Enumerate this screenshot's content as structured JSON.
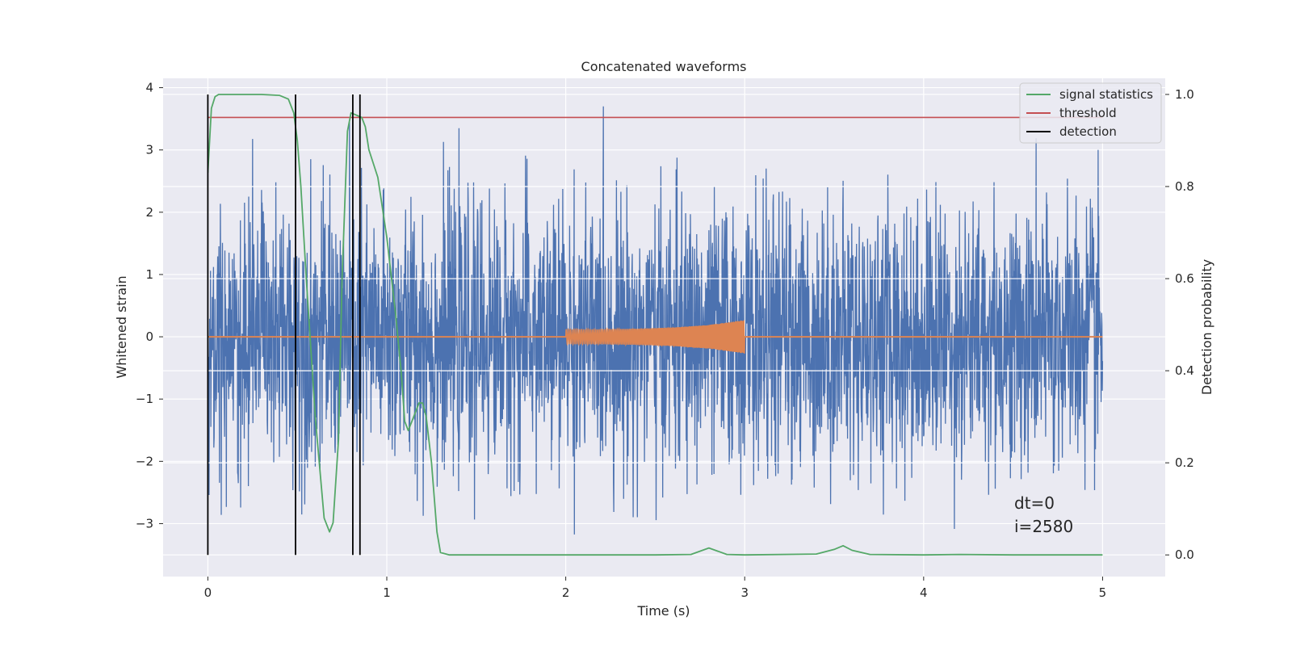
{
  "chart_data": {
    "type": "line",
    "title": "Concatenated waveforms",
    "xlabel": "Time (s)",
    "ylabel": "Whitened strain",
    "y2label": "Detection probability",
    "xlim": [
      -0.25,
      5.35
    ],
    "ylim": [
      -3.85,
      4.15
    ],
    "y2lim": [
      -0.047,
      1.035
    ],
    "xticks": [
      0,
      1,
      2,
      3,
      4,
      5
    ],
    "xtick_labels": [
      "0",
      "1",
      "2",
      "3",
      "4",
      "5"
    ],
    "yticks": [
      -3,
      -2,
      -1,
      0,
      1,
      2,
      3,
      4
    ],
    "ytick_labels": [
      "−3",
      "−2",
      "−1",
      "0",
      "1",
      "2",
      "3",
      "4"
    ],
    "y2ticks": [
      0.0,
      0.2,
      0.4,
      0.6,
      0.8,
      1.0
    ],
    "y2tick_labels": [
      "0.0",
      "0.2",
      "0.4",
      "0.6",
      "0.8",
      "1.0"
    ],
    "grid": true,
    "background": "#EAEAF2",
    "legend": {
      "placement": "top-right",
      "entries": [
        {
          "label": "signal statistics",
          "color": "#55A868"
        },
        {
          "label": "threshold",
          "color": "#C44E52"
        },
        {
          "label": "detection",
          "color": "#000000"
        }
      ]
    },
    "series": [
      {
        "name": "Whitened strain (noise)",
        "color": "#4C72B0",
        "axis": "left",
        "x_range": [
          0,
          5
        ],
        "amplitude_envelope": [
          -3.5,
          3.7
        ],
        "description_of_values": "dense noise between x=0 and x=5"
      },
      {
        "name": "injected waveform",
        "color": "#DD8452",
        "axis": "left",
        "x": [
          0,
          2,
          2.2,
          2.4,
          2.6,
          2.8,
          3.0,
          3.0,
          5
        ],
        "envelope": [
          0,
          0.12,
          0.12,
          0.13,
          0.15,
          0.19,
          0.27,
          0,
          0
        ]
      },
      {
        "name": "signal statistics",
        "color": "#55A868",
        "axis": "right",
        "x": [
          0,
          0.02,
          0.04,
          0.06,
          0.1,
          0.2,
          0.3,
          0.4,
          0.45,
          0.48,
          0.5,
          0.52,
          0.55,
          0.6,
          0.65,
          0.68,
          0.7,
          0.73,
          0.75,
          0.78,
          0.8,
          0.83,
          0.86,
          0.88,
          0.9,
          0.95,
          1.0,
          1.05,
          1.08,
          1.1,
          1.12,
          1.15,
          1.18,
          1.2,
          1.22,
          1.25,
          1.28,
          1.3,
          1.35,
          1.5,
          2.0,
          2.5,
          2.7,
          2.75,
          2.8,
          2.85,
          2.9,
          3.0,
          3.4,
          3.5,
          3.55,
          3.6,
          3.7,
          4.0,
          4.2,
          4.5,
          5.0
        ],
        "values": [
          0.83,
          0.97,
          0.995,
          1.0,
          1.0,
          1.0,
          1.0,
          0.998,
          0.99,
          0.96,
          0.9,
          0.8,
          0.6,
          0.3,
          0.08,
          0.05,
          0.07,
          0.25,
          0.6,
          0.92,
          0.96,
          0.955,
          0.95,
          0.93,
          0.88,
          0.82,
          0.69,
          0.52,
          0.4,
          0.29,
          0.27,
          0.3,
          0.33,
          0.33,
          0.3,
          0.2,
          0.05,
          0.005,
          0.0,
          0.0,
          0.0,
          0.0,
          0.001,
          0.008,
          0.015,
          0.008,
          0.001,
          0.0,
          0.002,
          0.012,
          0.02,
          0.01,
          0.001,
          0.0,
          0.001,
          0.0,
          0.0
        ]
      },
      {
        "name": "threshold",
        "color": "#C44E52",
        "axis": "right",
        "x": [
          0,
          5
        ],
        "values": [
          0.95,
          0.95
        ]
      },
      {
        "name": "detection",
        "color": "#000000",
        "axis": "right",
        "x": [
          0.0,
          0.49,
          0.81,
          0.85
        ],
        "y_range": [
          0,
          1
        ]
      }
    ],
    "annotations": [
      {
        "text": "dt=0"
      },
      {
        "text": "i=2580"
      }
    ]
  }
}
